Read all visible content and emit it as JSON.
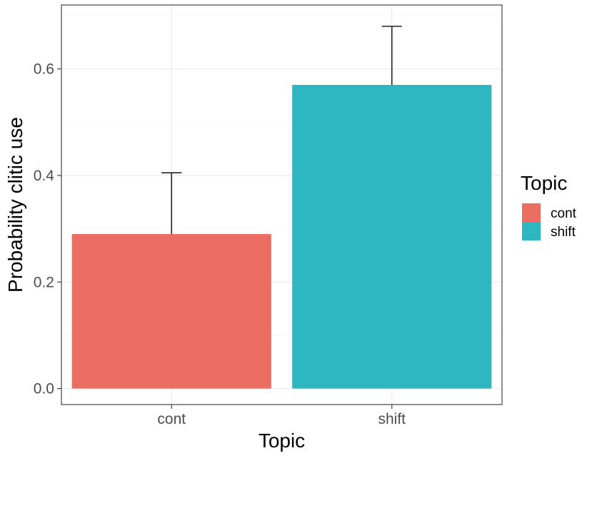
{
  "chart_data": {
    "type": "bar",
    "categories": [
      "cont",
      "shift"
    ],
    "values": [
      0.29,
      0.57
    ],
    "error_upper": [
      0.405,
      0.68
    ],
    "xlabel": "Topic",
    "ylabel": "Probability clitic use",
    "ylim": [
      -0.03,
      0.72
    ],
    "yticks": [
      0.0,
      0.2,
      0.4,
      0.6
    ],
    "ytick_labels": [
      "0.0",
      "0.2",
      "0.4",
      "0.6"
    ],
    "grid": true,
    "legend": {
      "title": "Topic",
      "position": "right",
      "entries": [
        "cont",
        "shift"
      ]
    },
    "colors": {
      "cont": "#ec6d61",
      "shift": "#2db7c1"
    }
  }
}
